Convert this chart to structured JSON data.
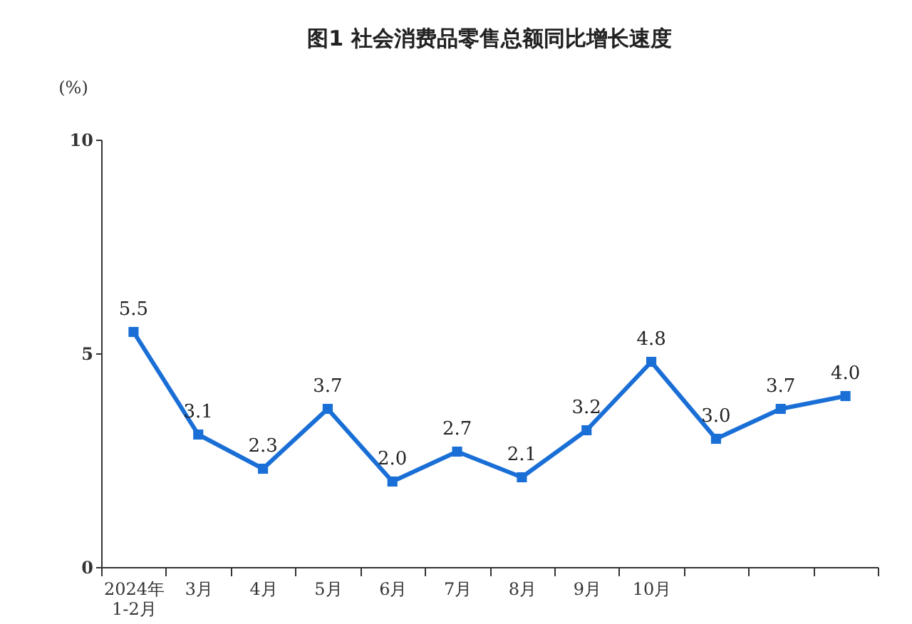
{
  "chart_data": {
    "type": "line",
    "title": "图1  社会消费品零售总额同比增长速度",
    "ylabel": "(%)",
    "categories": [
      "2024年\n1-2月",
      "3月",
      "4月",
      "5月",
      "6月",
      "7月",
      "8月",
      "9月",
      "10月",
      null,
      null,
      null
    ],
    "series": [
      {
        "color": "#1a6fd6",
        "values": [
          5.5,
          3.1,
          2.3,
          3.7,
          2.0,
          2.7,
          2.1,
          3.2,
          4.8,
          3.0,
          3.7,
          4.0
        ],
        "value_labels": [
          "5.5",
          "3.1",
          "2.3",
          "3.7",
          "2.0",
          "2.7",
          "2.1",
          "3.2",
          "4.8",
          "3.0",
          "3.7",
          "4.0"
        ]
      }
    ],
    "ylim": [
      0,
      10
    ],
    "yticks": [
      0,
      5,
      10
    ],
    "grid": false,
    "marker": "square",
    "line_style": "solid"
  }
}
